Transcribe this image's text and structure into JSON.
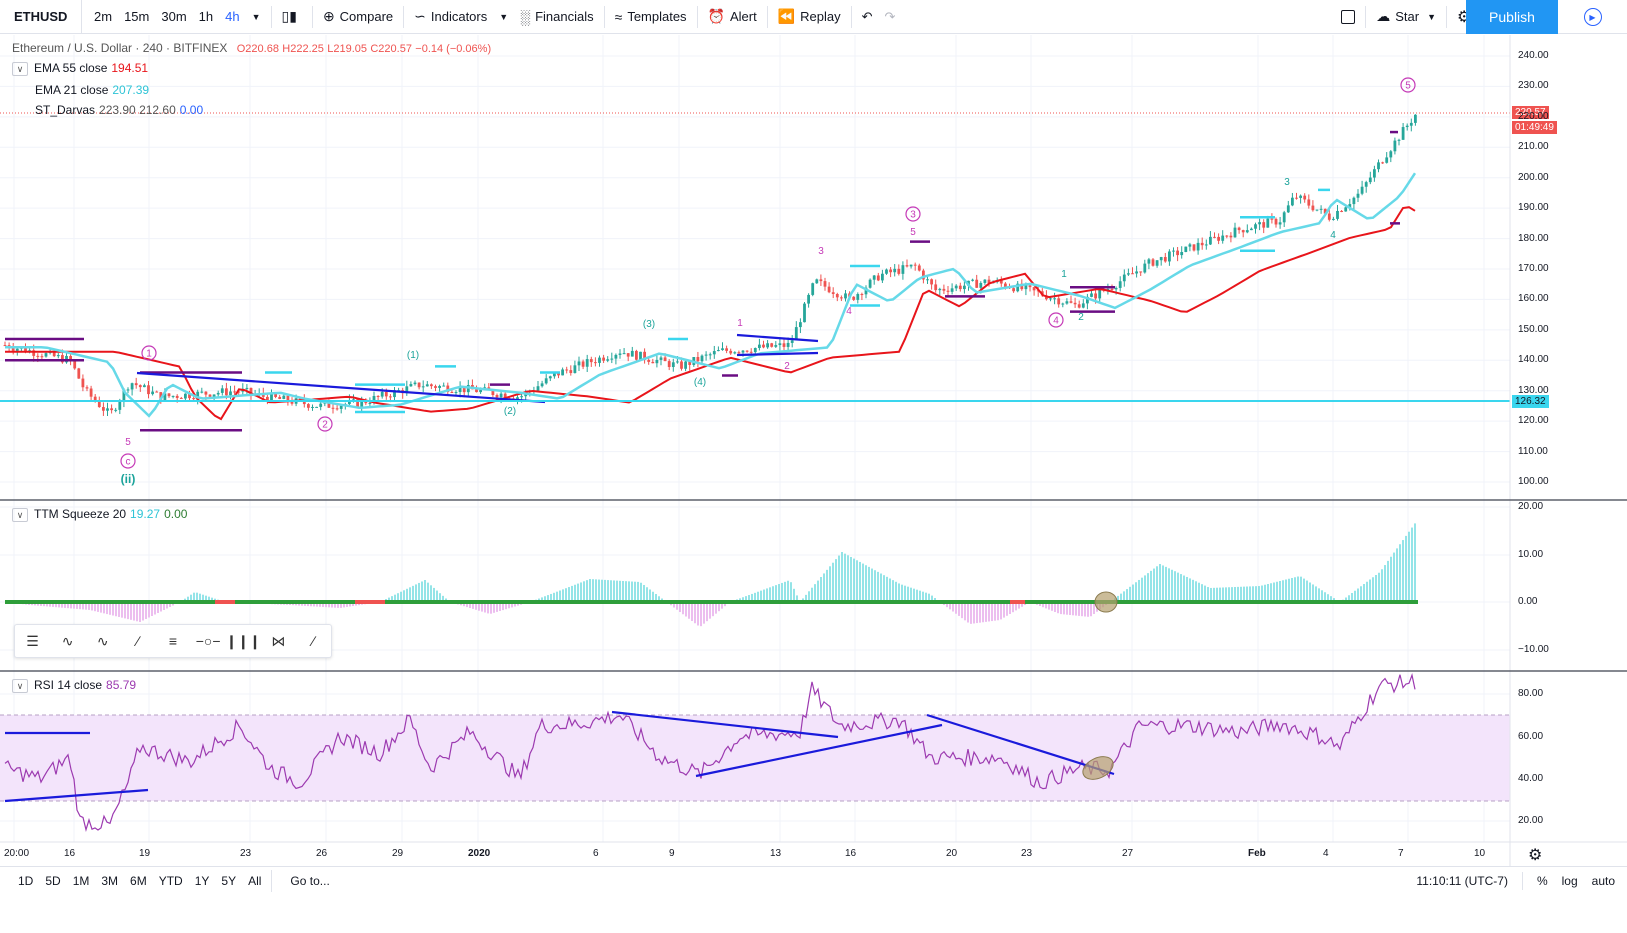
{
  "toolbar": {
    "symbol": "ETHUSD",
    "intervals": [
      "2m",
      "15m",
      "30m",
      "1h",
      "4h"
    ],
    "active_interval": "4h",
    "compare": "Compare",
    "indicators": "Indicators",
    "financials": "Financials",
    "templates": "Templates",
    "alert": "Alert",
    "replay": "Replay",
    "star": "Star",
    "publish": "Publish"
  },
  "main_legend": {
    "title": "Ethereum / U.S. Dollar · 240 · BITFINEX",
    "o": "O220.68",
    "h": "H222.25",
    "l": "L219.05",
    "c": "C220.57",
    "change": "−0.14 (−0.06%)",
    "ema55_label": "EMA 55 close",
    "ema55_value": "194.51",
    "ema21_label": "EMA 21 close",
    "ema21_value": "207.39",
    "darvas_label": "ST_Darvas",
    "darvas_values": "223.90  212.60",
    "darvas_extra": "0.00"
  },
  "price_axis": [
    "240.00",
    "230.00",
    "220.00",
    "210.00",
    "200.00",
    "190.00",
    "180.00",
    "170.00",
    "160.00",
    "150.00",
    "140.00",
    "130.00",
    "120.00",
    "110.00",
    "100.00"
  ],
  "price_tags": {
    "last_price": "220.57",
    "countdown": "01:49:49",
    "hline": "126.32"
  },
  "ttm_legend": {
    "label": "TTM Squeeze 20",
    "v1": "19.27",
    "v2": "0.00"
  },
  "ttm_axis": [
    "20.00",
    "10.00",
    "0.00",
    "−10.00"
  ],
  "rsi_legend": {
    "label": "RSI 14 close",
    "value": "85.79"
  },
  "rsi_axis": [
    "80.00",
    "60.00",
    "40.00",
    "20.00"
  ],
  "time_axis": [
    "20:00",
    "16",
    "19",
    "23",
    "26",
    "29",
    "2020",
    "6",
    "9",
    "13",
    "16",
    "20",
    "23",
    "27",
    "Feb",
    "4",
    "7",
    "10"
  ],
  "wave_labels": {
    "c": "c",
    "ii": "(ii)",
    "w1c": "1",
    "w2c": "2",
    "w3c": "3",
    "w4c": "4",
    "w5c": "5",
    "p1": "(1)",
    "p2": "(2)",
    "p3": "(3)",
    "p4": "(4)",
    "n5a": "5",
    "n1": "1",
    "n2": "2",
    "n3": "3",
    "n4": "4",
    "n5b": "5",
    "n3b": "3",
    "n1b": "1",
    "n2b": "2",
    "n4b": "4"
  },
  "colors": {
    "candle_up": "#26a69a",
    "candle_down": "#ef5350",
    "ema55": "#e8151b",
    "ema21": "#66d9e8",
    "darvas_top": "#3ad6ee",
    "darvas_bottom": "#6a0d83",
    "trendline": "#1a1adb",
    "wave": "#c53ab7",
    "rsi": "#9c3ab0",
    "rsi_band": "#f3e4fb",
    "ttm_pos": "#66d9dd",
    "ttm_neg": "#e4a2e8",
    "accent": "#2196f3"
  },
  "bottom": {
    "ranges": [
      "1D",
      "5D",
      "1M",
      "3M",
      "6M",
      "YTD",
      "1Y",
      "5Y",
      "All"
    ],
    "goto": "Go to...",
    "clock": "11:10:11 (UTC-7)",
    "pct": "%",
    "log": "log",
    "auto": "auto"
  }
}
